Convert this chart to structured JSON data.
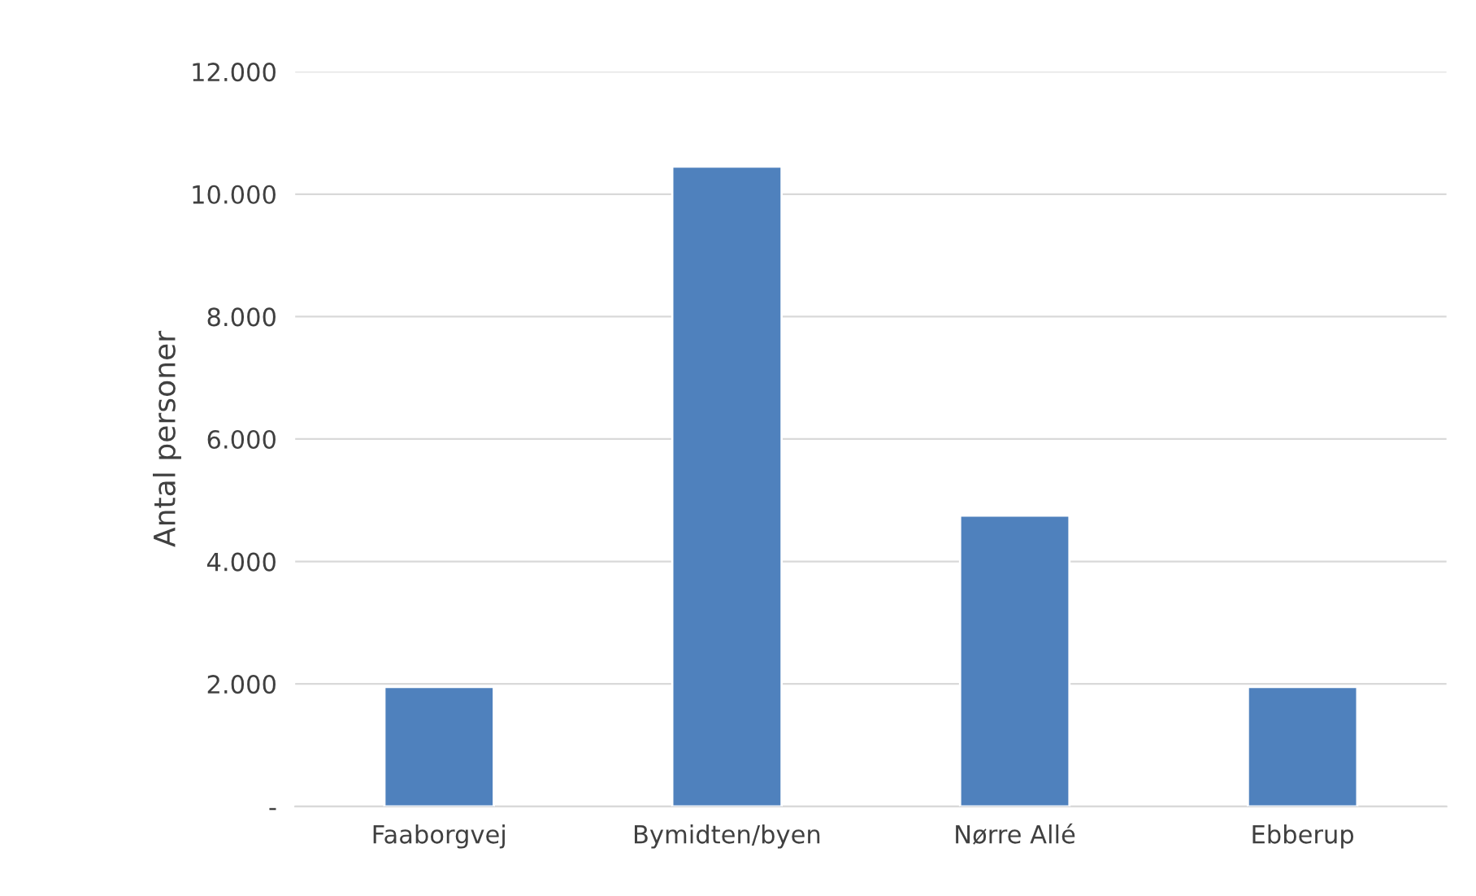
{
  "chart_data": {
    "type": "bar",
    "ylabel": "Antal personer",
    "categories": [
      "Faaborgvej",
      "Bymidten/byen",
      "Nørre Allé",
      "Ebberup"
    ],
    "values": [
      1950,
      10450,
      4750,
      1950
    ],
    "color": "#4f81bd",
    "ylim": [
      0,
      12000
    ],
    "yticks": [
      {
        "value": 0,
        "label": "-"
      },
      {
        "value": 2000,
        "label": "2.000"
      },
      {
        "value": 4000,
        "label": "4.000"
      },
      {
        "value": 6000,
        "label": "6.000"
      },
      {
        "value": 8000,
        "label": "8.000"
      },
      {
        "value": 10000,
        "label": "10.000"
      },
      {
        "value": 12000,
        "label": "12.000"
      }
    ],
    "grid": "y",
    "legend": false
  }
}
